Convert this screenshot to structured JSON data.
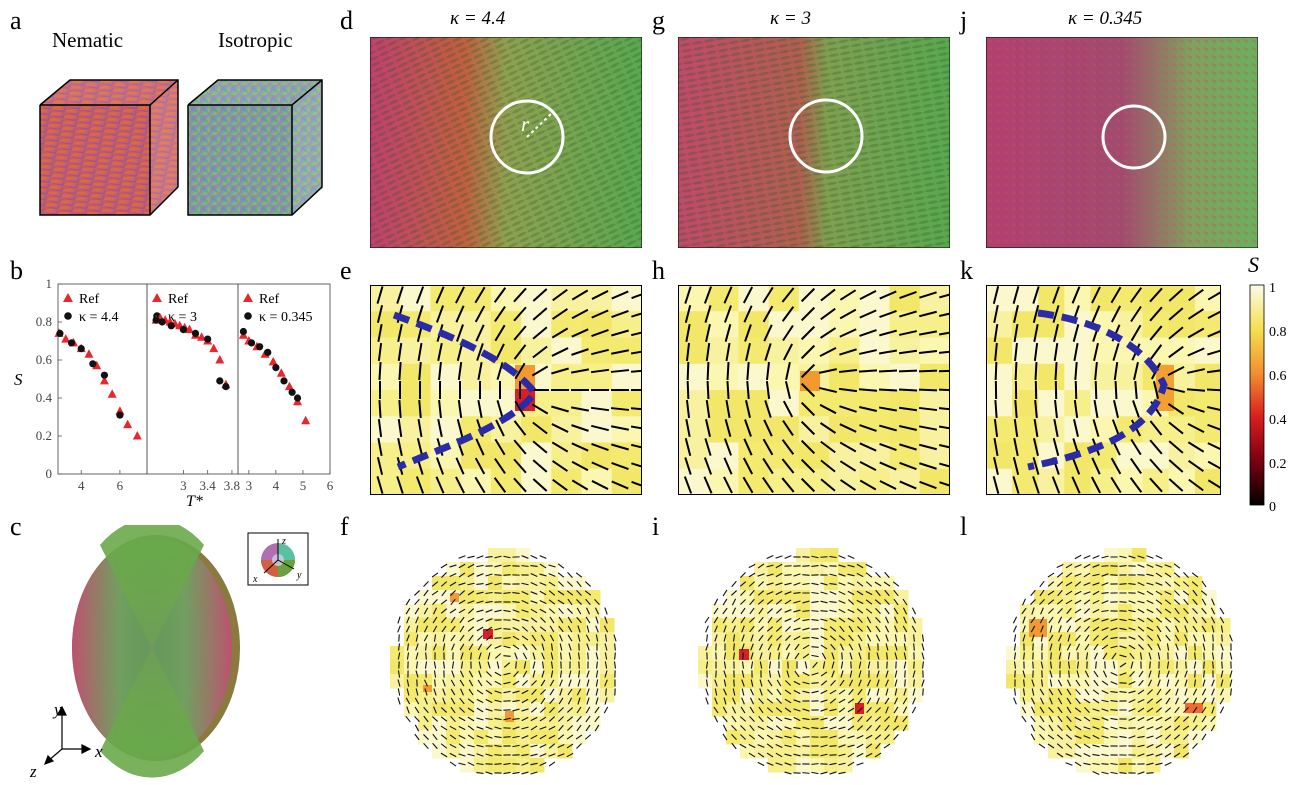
{
  "panel_letters": {
    "a": "a",
    "b": "b",
    "c": "c",
    "d": "d",
    "e": "e",
    "f": "f",
    "g": "g",
    "h": "h",
    "i": "i",
    "j": "j",
    "k": "k",
    "l": "l"
  },
  "phases": {
    "nematic": "Nematic",
    "isotropic": "Isotropic"
  },
  "columns": [
    {
      "kappa_label": "κ = 4.4"
    },
    {
      "kappa_label": "κ = 3"
    },
    {
      "kappa_label": "κ = 0.345"
    }
  ],
  "radius_label": "r",
  "axes_labels": {
    "x": "x",
    "y": "y",
    "z": "z"
  },
  "colorbar": {
    "title": "S",
    "ticks": [
      "1",
      "0.8",
      "0.6",
      "0.4",
      "0.2",
      "0"
    ]
  },
  "chart_data": [
    {
      "type": "scatter",
      "ylabel": "S",
      "xlabel": "T*",
      "ylim": [
        0,
        1
      ],
      "yticks": [
        "0",
        "0.2",
        "0.4",
        "0.6",
        "0.8",
        "1"
      ],
      "subplots": [
        {
          "xlim": [
            2.8,
            7.4
          ],
          "xticks": [
            "4",
            "6"
          ],
          "xtick_values": [
            4,
            6
          ],
          "series": [
            {
              "name": "Ref",
              "marker": "triangle",
              "color": "#e8262b",
              "x": [
                2.85,
                3.2,
                3.6,
                4.0,
                4.4,
                4.8,
                5.2,
                5.6,
                6.0,
                6.4,
                6.9
              ],
              "y": [
                0.74,
                0.71,
                0.69,
                0.66,
                0.63,
                0.57,
                0.49,
                0.42,
                0.33,
                0.26,
                0.2
              ]
            },
            {
              "name": "κ = 4.4",
              "marker": "circle",
              "color": "#111111",
              "x": [
                2.9,
                3.5,
                4.0,
                4.6,
                5.2,
                6.0
              ],
              "y": [
                0.74,
                0.69,
                0.66,
                0.58,
                0.52,
                0.31
              ]
            }
          ]
        },
        {
          "xlim": [
            2.4,
            3.9
          ],
          "xticks": [
            "3",
            "3.4",
            "3.8"
          ],
          "xtick_values": [
            3,
            3.4,
            3.8
          ],
          "series": [
            {
              "name": "Ref",
              "marker": "triangle",
              "color": "#e8262b",
              "x": [
                2.55,
                2.62,
                2.7,
                2.78,
                2.86,
                2.94,
                3.02,
                3.1,
                3.2,
                3.3,
                3.4,
                3.5,
                3.6,
                3.7
              ],
              "y": [
                0.81,
                0.82,
                0.81,
                0.8,
                0.79,
                0.78,
                0.77,
                0.76,
                0.73,
                0.72,
                0.7,
                0.66,
                0.6,
                0.47
              ]
            },
            {
              "name": "κ = 3",
              "marker": "circle",
              "color": "#111111",
              "x": [
                2.55,
                2.65,
                2.8,
                3.0,
                3.2,
                3.4,
                3.6,
                3.7
              ],
              "y": [
                0.81,
                0.8,
                0.78,
                0.76,
                0.74,
                0.71,
                0.49,
                0.46
              ]
            }
          ]
        },
        {
          "xlim": [
            2.6,
            6.0
          ],
          "xticks": [
            "3",
            "4",
            "5",
            "6"
          ],
          "xtick_values": [
            3,
            4,
            5,
            6
          ],
          "series": [
            {
              "name": "Ref",
              "marker": "triangle",
              "color": "#e8262b",
              "x": [
                2.8,
                3.0,
                3.3,
                3.6,
                3.9,
                4.2,
                4.5,
                4.8,
                5.1
              ],
              "y": [
                0.73,
                0.7,
                0.67,
                0.63,
                0.59,
                0.53,
                0.46,
                0.38,
                0.28
              ]
            },
            {
              "name": "κ = 0.345",
              "marker": "circle",
              "color": "#111111",
              "x": [
                2.8,
                3.1,
                3.4,
                3.7,
                4.0,
                4.3,
                4.6,
                4.8
              ],
              "y": [
                0.75,
                0.69,
                0.67,
                0.64,
                0.56,
                0.49,
                0.43,
                0.4
              ]
            }
          ]
        }
      ]
    }
  ]
}
